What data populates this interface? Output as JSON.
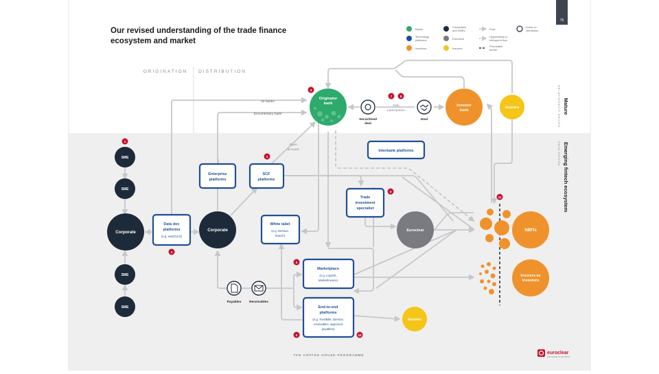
{
  "page": {
    "number": "75",
    "title_lines": [
      "Our revised understanding of the trade finance",
      "ecosystem and market"
    ],
    "footer": "THE COFFEE HOUSE PROGRAMME",
    "brand": {
      "name": "euroclear",
      "sub": "THE CENTRE OF AUTHORITY"
    }
  },
  "sections": {
    "origination": "ORIGINATION",
    "distribution": "DISTRIBUTION",
    "mature": "Mature",
    "mature_sub": "RELATIONSHIP DRIVEN",
    "emerging": "Emerging fintech ecosystem",
    "emerging_sub": "DATA DRIVEN"
  },
  "legend": {
    "banks": "Banks",
    "tech": [
      "Technology",
      "platforms"
    ],
    "investors": "Investors",
    "corporates": [
      "Corporates",
      "and SMEs"
    ],
    "euroclear": "Euroclear",
    "insurers": "Insurers",
    "flow": "Flow",
    "hypothetical": [
      "Hypothetical or",
      "infrequent flow"
    ],
    "permeable": [
      "Permeable",
      "barrier"
    ],
    "action": [
      "Action or",
      "interaction"
    ]
  },
  "nodes": {
    "sme": "SME",
    "corporate": "Corporate",
    "originator": [
      "Originator",
      "bank"
    ],
    "investor_bank": [
      "Investor",
      "bank"
    ],
    "insurers": "Insurers",
    "euroclear": "Euroclear",
    "nbfis": "NBFIs",
    "insurers_inv": [
      "Insurers as",
      "investors"
    ],
    "insurers_bottom": "Insurers"
  },
  "boxes": {
    "datadoc": [
      "Data doc",
      "platforms",
      "(e.g. essDOCS)"
    ],
    "enterprise": [
      "Enterprise",
      "platforms"
    ],
    "scf": [
      "SCF",
      "platforms"
    ],
    "whitelabel": [
      "White label",
      "(e.g. Demica,",
      "fintech)"
    ],
    "interbank": "Interbank platforms",
    "trade": [
      "Trade",
      "investment",
      "specialist"
    ],
    "marketplace": [
      "Marketplace",
      "(e.g. LiquidX,",
      "MarketInvoice)"
    ],
    "e2e": [
      "End-to-end",
      "platforms",
      "(e.g. TrustBills, Demica:",
      "receivables, approved",
      "payables)"
    ]
  },
  "labels": {
    "banks32": "32 banks",
    "doctrade": "Documentary trade",
    "open_account": [
      "Open",
      "account"
    ],
    "securitised": [
      "Securitised",
      "deal"
    ],
    "risk": [
      "Risk",
      "participation"
    ],
    "deal": "Deal",
    "payables": "Payables",
    "receivables": "Receivables"
  },
  "badges": [
    "1",
    "2",
    "3",
    "4",
    "5",
    "6",
    "7",
    "8",
    "9",
    "10",
    "11"
  ],
  "colors": {
    "bank_green": "#2daa6c",
    "navy": "#1d2a3a",
    "tech_blue": "#1f4e96",
    "orange": "#f0922b",
    "grey": "#7a7b80",
    "yellow": "#f5c518",
    "badge_red": "#c8102e",
    "line": "#c6c7ca",
    "band": "#efefef"
  }
}
